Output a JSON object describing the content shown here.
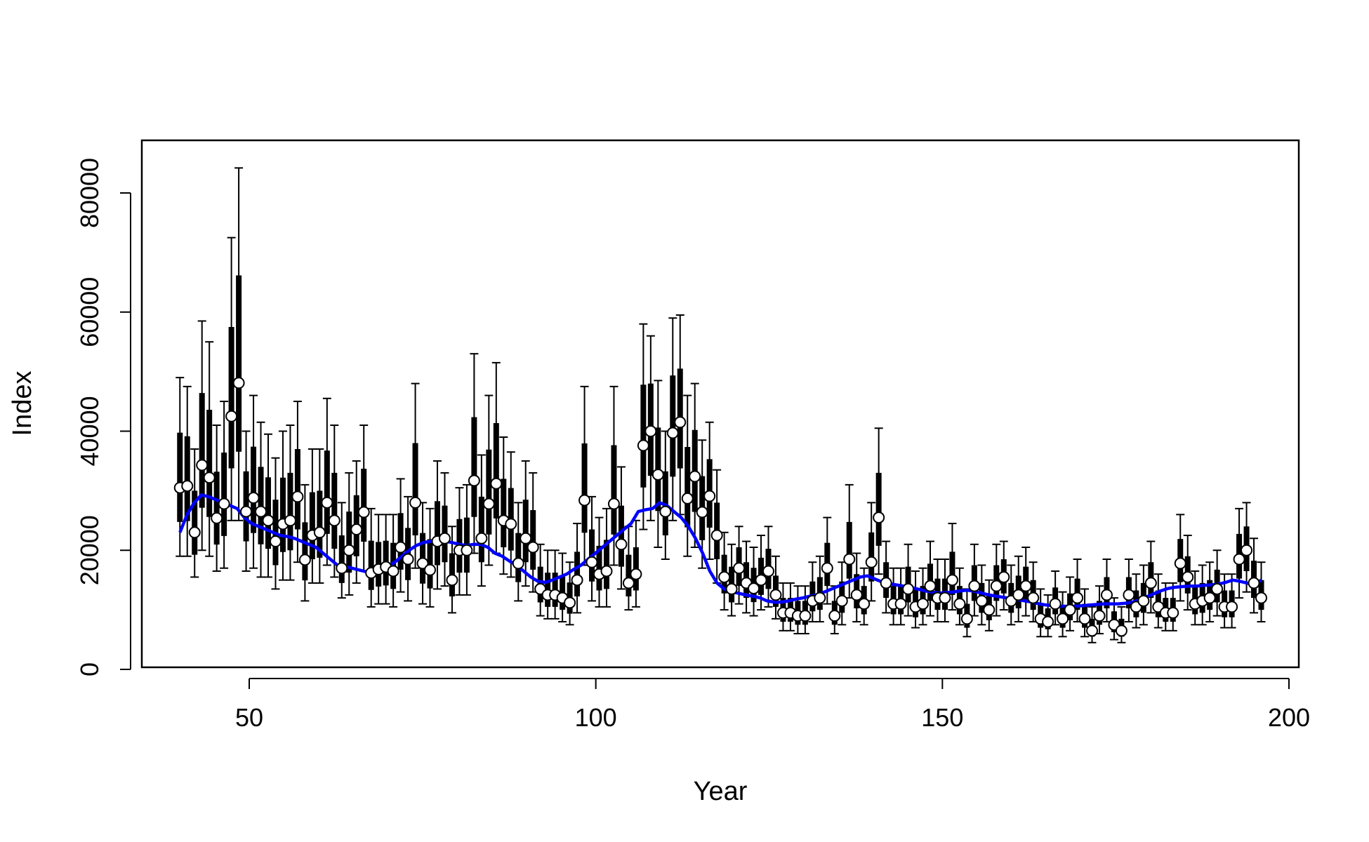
{
  "chart_data": {
    "type": "scatter",
    "title": "",
    "xlabel": "Year",
    "ylabel": "Index",
    "xlim": [
      35,
      200
    ],
    "ylim": [
      0,
      88000
    ],
    "x_ticks": [
      50,
      100,
      150,
      200
    ],
    "y_ticks": [
      0,
      20000,
      40000,
      60000,
      80000
    ],
    "grid": false,
    "legend": "none",
    "colors": {
      "points": "#ffffff",
      "point_outline": "#000000",
      "intervals": "#000000",
      "smooth": "#0000ff"
    },
    "x_start": 40,
    "x_end": 196,
    "point_values": [
      30500,
      30800,
      23000,
      34300,
      32200,
      25400,
      27800,
      42500,
      48100,
      26500,
      28800,
      26500,
      25000,
      21500,
      24400,
      25000,
      29000,
      18400,
      22500,
      23000,
      28000,
      25000,
      17000,
      20000,
      23500,
      26400,
      16200,
      16800,
      17200,
      16500,
      20500,
      18500,
      28000,
      17800,
      16700,
      21500,
      22000,
      15000,
      20000,
      20000,
      31700,
      22000,
      27800,
      31200,
      25000,
      24400,
      17800,
      22000,
      20500,
      13500,
      12500,
      12500,
      12000,
      11200,
      15000,
      28400,
      18000,
      16000,
      16500,
      27800,
      21000,
      14500,
      16000,
      37600,
      40000,
      32700,
      26500,
      39700,
      41500,
      28700,
      32400,
      26400,
      29100,
      22500,
      15500,
      13500,
      17000,
      14500,
      13600,
      15000,
      16500,
      12500,
      9500,
      9500,
      9000,
      9000,
      11500,
      12000,
      17000,
      9000,
      11500,
      18500,
      12500,
      11000,
      18000,
      25500,
      14500,
      11000,
      11000,
      13500,
      10500,
      11000,
      14000,
      12000,
      12000,
      15000,
      11000,
      8500,
      14000,
      11500,
      10000,
      14000,
      15500,
      11500,
      12500,
      14000,
      12000,
      8500,
      8000,
      11000,
      8500,
      10000,
      12000,
      8500,
      6500,
      9000,
      12500,
      7500,
      6500,
      12500,
      10500,
      11500,
      14500,
      10500,
      9500,
      9500,
      17800,
      15500,
      11000,
      11500,
      12000,
      13500,
      10500,
      10500,
      18500,
      20000,
      14500,
      12000
    ],
    "whisker_low": [
      19000,
      19000,
      15500,
      20000,
      19000,
      16500,
      17000,
      25000,
      25000,
      16500,
      17000,
      15500,
      15500,
      13500,
      15000,
      15000,
      18000,
      11500,
      14500,
      14500,
      17500,
      15500,
      12000,
      12500,
      14500,
      16500,
      10500,
      11000,
      11000,
      10500,
      13000,
      11500,
      17000,
      11000,
      10500,
      13500,
      14000,
      9500,
      12500,
      12500,
      19500,
      14000,
      17500,
      19500,
      16000,
      15500,
      11500,
      14000,
      13000,
      9000,
      8500,
      8500,
      8000,
      7500,
      9500,
      17500,
      11500,
      10500,
      10500,
      17500,
      13500,
      10000,
      10500,
      23500,
      25000,
      20500,
      18500,
      25000,
      26000,
      19000,
      20500,
      17000,
      18500,
      14500,
      10000,
      9000,
      11000,
      9500,
      9000,
      10000,
      10500,
      8500,
      6500,
      6500,
      6000,
      6000,
      8000,
      8000,
      11000,
      6000,
      7500,
      12000,
      8000,
      7500,
      11500,
      16000,
      9500,
      7500,
      7500,
      9000,
      7000,
      7500,
      9000,
      8000,
      8000,
      10000,
      7500,
      5500,
      9000,
      7500,
      6500,
      9000,
      10000,
      7500,
      8000,
      9000,
      8000,
      5500,
      5500,
      7500,
      5500,
      6500,
      8000,
      5500,
      4500,
      6000,
      8000,
      5000,
      4500,
      8000,
      7000,
      7500,
      9500,
      7000,
      6500,
      6500,
      11500,
      10000,
      7500,
      7500,
      8000,
      9000,
      7000,
      7000,
      12000,
      13000,
      9500,
      8000
    ],
    "whisker_high": [
      49000,
      47500,
      37000,
      58500,
      55000,
      41000,
      45000,
      72500,
      84200,
      40000,
      46000,
      41500,
      39500,
      35500,
      40000,
      41000,
      45000,
      31000,
      37000,
      37000,
      45500,
      41000,
      28000,
      33000,
      35000,
      41000,
      27000,
      26000,
      26000,
      26000,
      32000,
      29000,
      48000,
      28000,
      27000,
      35000,
      33000,
      24000,
      30500,
      31000,
      53000,
      36000,
      46000,
      51500,
      39000,
      36500,
      28000,
      35000,
      33000,
      21000,
      20000,
      20000,
      19500,
      18000,
      24500,
      47500,
      29000,
      25500,
      27000,
      47500,
      34000,
      24000,
      25000,
      58000,
      56000,
      48500,
      40000,
      59000,
      59500,
      46000,
      48000,
      38500,
      41500,
      33500,
      23000,
      21000,
      24000,
      21500,
      20500,
      22500,
      24000,
      19000,
      14500,
      14500,
      14000,
      14000,
      18000,
      19000,
      25500,
      14000,
      18000,
      31000,
      19500,
      17000,
      28000,
      40500,
      21500,
      17000,
      17000,
      21000,
      16500,
      17000,
      21500,
      18500,
      18500,
      24500,
      17000,
      13500,
      21000,
      17500,
      15000,
      21000,
      21500,
      17500,
      19000,
      20500,
      18000,
      13500,
      12500,
      16500,
      13000,
      15500,
      18500,
      13500,
      10500,
      14000,
      18500,
      12000,
      10500,
      18500,
      16000,
      17500,
      21500,
      16000,
      14500,
      14500,
      26000,
      22500,
      16500,
      17500,
      18000,
      20000,
      16000,
      16000,
      27000,
      28000,
      22000,
      18000
    ],
    "smooth_values": [
      23000,
      26000,
      28000,
      29300,
      29000,
      28500,
      28000,
      27500,
      27000,
      25500,
      24500,
      24000,
      23500,
      23000,
      22500,
      22300,
      22000,
      21500,
      21000,
      20500,
      19500,
      18500,
      17500,
      17300,
      17000,
      16700,
      16400,
      16500,
      16800,
      17200,
      18000,
      19000,
      20000,
      20800,
      21300,
      21500,
      21500,
      21500,
      21300,
      21000,
      20800,
      21000,
      21000,
      20500,
      19500,
      19000,
      18200,
      17500,
      16500,
      15500,
      14800,
      14600,
      15000,
      15500,
      16000,
      16800,
      17500,
      18500,
      19500,
      20500,
      21500,
      22500,
      23500,
      24500,
      26500,
      26800,
      27000,
      28000,
      27500,
      26500,
      25500,
      24000,
      22000,
      19500,
      16500,
      14500,
      13500,
      13000,
      12800,
      12500,
      12300,
      12000,
      11500,
      11300,
      11300,
      11500,
      11800,
      12000,
      12300,
      12500,
      13000,
      13500,
      14000,
      14500,
      15000,
      15500,
      15700,
      15200,
      14700,
      14400,
      14200,
      14000,
      13800,
      13500,
      13200,
      13000,
      12800,
      12900,
      13000,
      13200,
      13300,
      13100,
      12800,
      12500,
      12300,
      12100,
      11900,
      11700,
      11500,
      11300,
      11000,
      10800,
      10700,
      10600,
      10600,
      10600,
      10700,
      10800,
      10900,
      11000,
      11000,
      11000,
      11100,
      11300,
      11700,
      12200,
      12700,
      13200,
      13600,
      13800,
      13900,
      14000,
      14000,
      14100,
      14200,
      14300,
      14600,
      15000,
      14800,
      14500,
      14200,
      15000
    ]
  }
}
